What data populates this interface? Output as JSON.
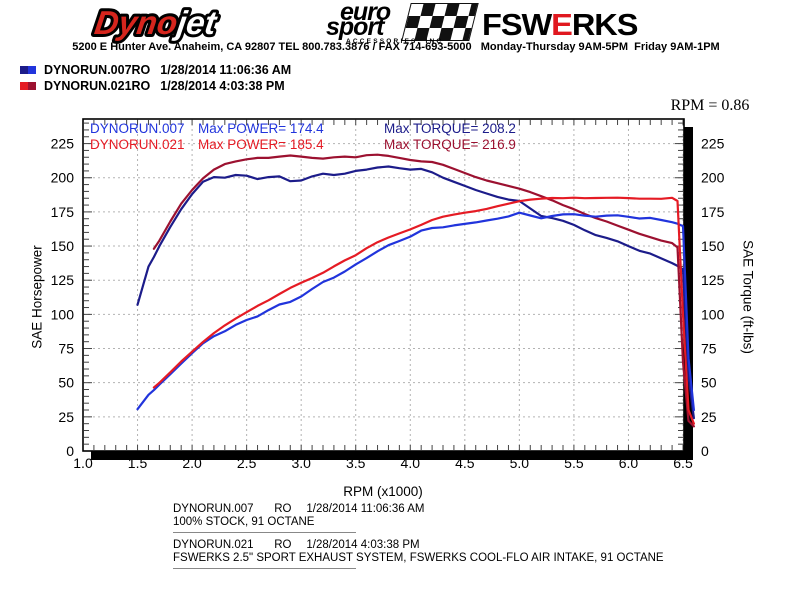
{
  "header": {
    "dynojet": {
      "part1": "Dyno",
      "part2": "jet"
    },
    "eurosport": {
      "line1": "euro",
      "line2": "sport",
      "line3": "ACCESSORIES, INC"
    },
    "fswerks": {
      "part1": "FSW",
      "part2": "E",
      "part3": "RKS"
    },
    "address_line": "5200 E Hunter Ave. Anaheim, CA 92807 TEL 800.783.3876 / FAX 714-693-5000   Monday-Thursday 9AM-5PM  Friday 9AM-1PM"
  },
  "legend": {
    "runs": [
      {
        "label": "DYNORUN.007RO",
        "datetime": "1/28/2014 11:06:36 AM",
        "swatch_colors": [
          "#1c1c8a",
          "#2134dc"
        ]
      },
      {
        "label": "DYNORUN.021RO",
        "datetime": "1/28/2014 4:03:38 PM",
        "swatch_colors": [
          "#e51b24",
          "#9c1130"
        ]
      }
    ]
  },
  "rpm_factor_label": "RPM = 0.86",
  "chart_data": {
    "type": "line",
    "xlabel": "RPM (x1000)",
    "ylabel_left": "SAE Horsepower",
    "ylabel_right": "SAE Torque (ft-lbs)",
    "x_ticks": [
      "1.0",
      "1.5",
      "2.0",
      "2.5",
      "3.0",
      "3.5",
      "4.0",
      "4.5",
      "5.0",
      "5.5",
      "6.0",
      "6.5"
    ],
    "y_ticks": [
      0,
      25,
      50,
      75,
      100,
      125,
      150,
      175,
      200,
      225
    ],
    "xlim": [
      1.0,
      6.55
    ],
    "ylim": [
      0,
      243
    ],
    "grid": true,
    "grid_color": "#b3b3b3",
    "annotations": [
      {
        "run": "DYNORUN.007",
        "power": "Max POWER= 174.4",
        "torque": "Max TORQUE= 208.2",
        "power_color": "#2134dc",
        "torque_color": "#1c1c8a"
      },
      {
        "run": "DYNORUN.021",
        "power": "Max POWER= 185.4",
        "torque": "Max TORQUE= 216.9",
        "power_color": "#e51b24",
        "torque_color": "#9c1130"
      }
    ],
    "max_values": {
      "DYNORUN.007": {
        "max_power_hp": 174.4,
        "max_torque_ftlb": 208.2
      },
      "DYNORUN.021": {
        "max_power_hp": 185.4,
        "max_torque_ftlb": 216.9
      }
    },
    "x_rpm": [
      1.5,
      1.6,
      1.65,
      1.7,
      1.8,
      1.9,
      2.0,
      2.1,
      2.2,
      2.3,
      2.4,
      2.5,
      2.6,
      2.7,
      2.8,
      2.9,
      3.0,
      3.1,
      3.2,
      3.3,
      3.4,
      3.5,
      3.6,
      3.7,
      3.8,
      3.9,
      4.0,
      4.1,
      4.2,
      4.3,
      4.4,
      4.5,
      4.6,
      4.7,
      4.8,
      4.9,
      5.0,
      5.1,
      5.2,
      5.3,
      5.4,
      5.5,
      5.6,
      5.7,
      5.8,
      5.9,
      6.0,
      6.1,
      6.2,
      6.3,
      6.4,
      6.45,
      6.5,
      6.55,
      6.6
    ],
    "series": [
      {
        "id": "dynorun007-torque",
        "name": "DYNORUN.007 SAE Torque (ft-lbs)",
        "color": "#1c1c8a",
        "values": [
          107,
          135,
          142,
          150,
          164,
          177,
          188,
          197,
          200.5,
          200,
          202,
          201.5,
          199,
          200.5,
          201,
          197.5,
          198,
          201,
          203,
          202,
          203,
          205,
          206,
          207.5,
          208.2,
          207,
          206,
          206.5,
          204,
          200,
          197,
          194,
          191,
          188.5,
          186,
          184,
          183,
          177.5,
          172,
          170.5,
          168.5,
          165.5,
          161.5,
          158,
          156,
          153.5,
          150,
          146.5,
          144.5,
          141,
          137.5,
          135.5,
          133,
          55,
          24
        ]
      },
      {
        "id": "dynorun021-torque",
        "name": "DYNORUN.021 SAE Torque (ft-lbs)",
        "color": "#9c1130",
        "values": [
          null,
          null,
          148,
          154,
          168,
          181,
          191,
          199.5,
          206,
          210,
          212,
          213.5,
          214.5,
          214.5,
          215.5,
          216.3,
          215.5,
          214.5,
          214,
          215,
          215.5,
          215,
          216.5,
          216.9,
          216,
          214.5,
          213,
          212,
          211.5,
          209.5,
          206.5,
          203.5,
          200.5,
          198,
          196,
          194,
          192,
          189.5,
          186.5,
          183.5,
          180,
          177,
          173.5,
          170.5,
          168,
          165,
          162,
          159,
          156.5,
          154,
          152.2,
          149,
          65,
          22,
          18
        ]
      },
      {
        "id": "dynorun007-power",
        "name": "DYNORUN.007 SAE Horsepower",
        "color": "#2134dc",
        "values": [
          30.6,
          41.1,
          44.6,
          48.6,
          56.2,
          64,
          71.6,
          78.8,
          84,
          87.6,
          92.3,
          95.9,
          98.5,
          103.1,
          107.2,
          109.1,
          113.1,
          118.6,
          123.7,
          126.9,
          131.4,
          136.6,
          141.2,
          146.2,
          150.6,
          153.7,
          156.9,
          161.3,
          163.2,
          163.7,
          165.1,
          166.2,
          167.3,
          168.7,
          170,
          171.7,
          174.4,
          172.4,
          170.3,
          172,
          173.2,
          173.3,
          172.2,
          171.5,
          172.3,
          172.5,
          171.4,
          170.2,
          170.6,
          169.1,
          167.5,
          166.4,
          164.6,
          68,
          30
        ]
      },
      {
        "id": "dynorun021-power",
        "name": "DYNORUN.021 SAE Horsepower",
        "color": "#e51b24",
        "values": [
          null,
          null,
          46.5,
          49.9,
          57.6,
          65.5,
          72.7,
          79.8,
          86.3,
          91.9,
          96.9,
          101.6,
          106.2,
          110.3,
          114.9,
          119.4,
          123.1,
          126.6,
          130.4,
          135.1,
          139.5,
          143.3,
          148.4,
          152.8,
          156.3,
          159.3,
          162.2,
          165.5,
          169.1,
          171.5,
          173,
          174.4,
          175.6,
          177.2,
          179.2,
          181,
          182.8,
          184,
          184.7,
          185.2,
          185,
          185.4,
          185,
          185.2,
          185.3,
          185.4,
          185.1,
          184.7,
          184.7,
          184.6,
          185.3,
          183,
          100,
          30,
          20
        ]
      }
    ]
  },
  "footer_runs": [
    {
      "name": "DYNORUN.007",
      "ro": "RO",
      "datetime": "1/28/2014 11:06:36 AM",
      "description": "100% STOCK, 91 OCTANE"
    },
    {
      "name": "DYNORUN.021",
      "ro": "RO",
      "datetime": "1/28/2014 4:03:38 PM",
      "description": "FSWERKS 2.5\" SPORT EXHAUST SYSTEM, FSWERKS COOL-FLO AIR INTAKE, 91 OCTANE"
    }
  ]
}
